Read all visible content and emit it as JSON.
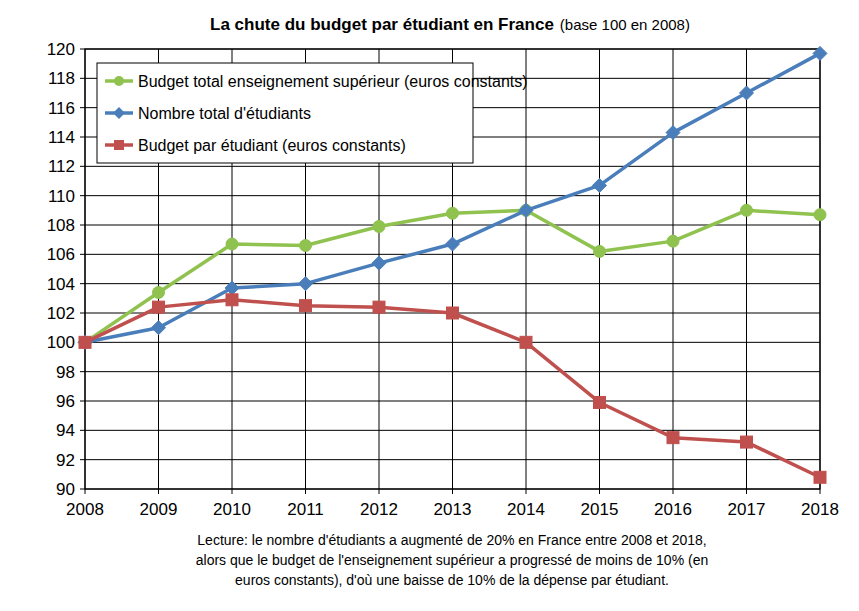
{
  "chart_data": {
    "type": "line",
    "title": "La chute du budget par étudiant en France",
    "subtitle": "(base 100 en 2008)",
    "x": [
      2008,
      2009,
      2010,
      2011,
      2012,
      2013,
      2014,
      2015,
      2016,
      2017,
      2018
    ],
    "xlim": [
      2008,
      2018
    ],
    "xticks": [
      2008,
      2009,
      2010,
      2011,
      2012,
      2013,
      2014,
      2015,
      2016,
      2017,
      2018
    ],
    "ylim": [
      90,
      120
    ],
    "yticks": [
      90,
      92,
      94,
      96,
      98,
      100,
      102,
      104,
      106,
      108,
      110,
      112,
      114,
      116,
      118,
      120
    ],
    "grid": true,
    "legend": "top-left",
    "series": [
      {
        "name": "Budget total enseignement supérieur (euros constants)",
        "color": "#8fc24f",
        "marker": "circle",
        "values": [
          100,
          103.4,
          106.7,
          106.6,
          107.9,
          108.8,
          109.0,
          106.2,
          106.9,
          109.0,
          108.7
        ]
      },
      {
        "name": "Nombre total d'étudiants",
        "color": "#4a7ebb",
        "marker": "diamond",
        "values": [
          100,
          101.0,
          103.7,
          104.0,
          105.4,
          106.7,
          109.0,
          110.7,
          114.3,
          117.0,
          119.7
        ]
      },
      {
        "name": "Budget par étudiant (euros constants)",
        "color": "#c0504d",
        "marker": "square",
        "values": [
          100,
          102.4,
          102.9,
          102.5,
          102.4,
          102.0,
          100.0,
          95.9,
          93.5,
          93.2,
          90.8
        ]
      }
    ],
    "note": [
      "Lecture: le nombre d'étudiants a augmenté de 20% en France entre 2008 et 2018,",
      "alors que le budget de l'enseignement supérieur a progressé de moins de 10% (en",
      "euros constants), d'où une baisse de 10% de la dépense par étudiant."
    ]
  }
}
